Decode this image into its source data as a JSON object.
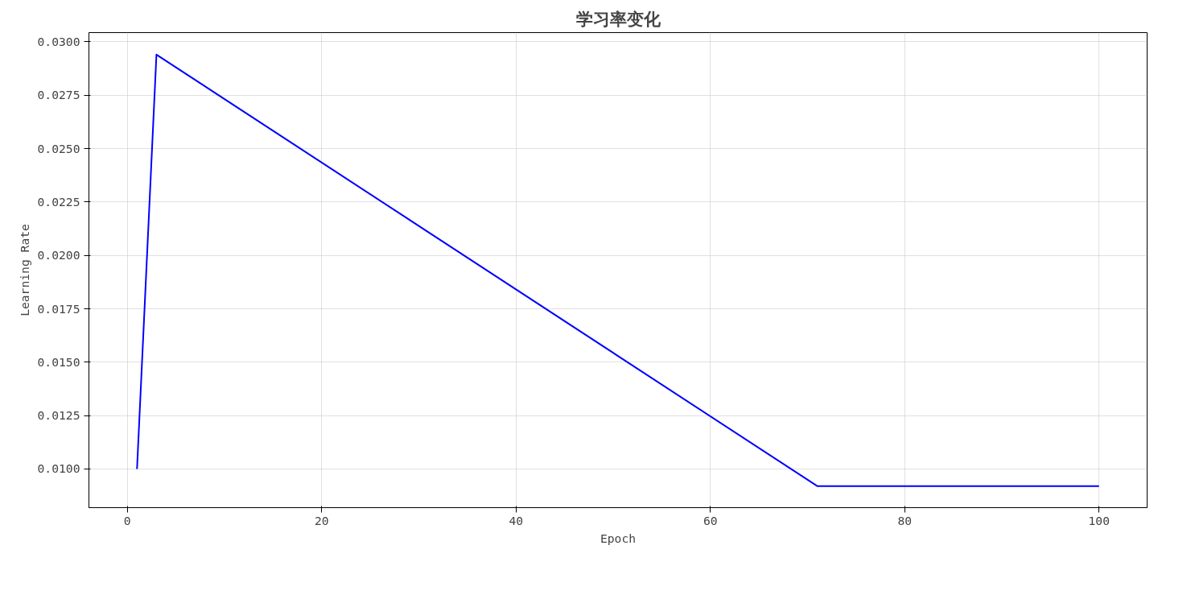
{
  "chart_data": {
    "type": "line",
    "title": "学习率变化",
    "xlabel": "Epoch",
    "ylabel": "Learning Rate",
    "x": [
      1,
      3,
      71,
      100
    ],
    "series": [
      {
        "color": "#0000ff",
        "values": [
          0.01,
          0.0294,
          0.0092,
          0.0092
        ]
      }
    ],
    "xlim": [
      -3.95,
      104.95
    ],
    "xticks": [
      0,
      20,
      40,
      60,
      80,
      100
    ],
    "ylim": [
      0.00819,
      0.03043
    ],
    "yticks": [
      {
        "value": 0.01,
        "label": "0.0100"
      },
      {
        "value": 0.0125,
        "label": "0.0125"
      },
      {
        "value": 0.015,
        "label": "0.0150"
      },
      {
        "value": 0.0175,
        "label": "0.0175"
      },
      {
        "value": 0.02,
        "label": "0.0200"
      },
      {
        "value": 0.0225,
        "label": "0.0225"
      },
      {
        "value": 0.025,
        "label": "0.0250"
      },
      {
        "value": 0.0275,
        "label": "0.0275"
      },
      {
        "value": 0.03,
        "label": "0.0300"
      }
    ],
    "grid": true,
    "marker": "none",
    "line_style": "solid"
  }
}
